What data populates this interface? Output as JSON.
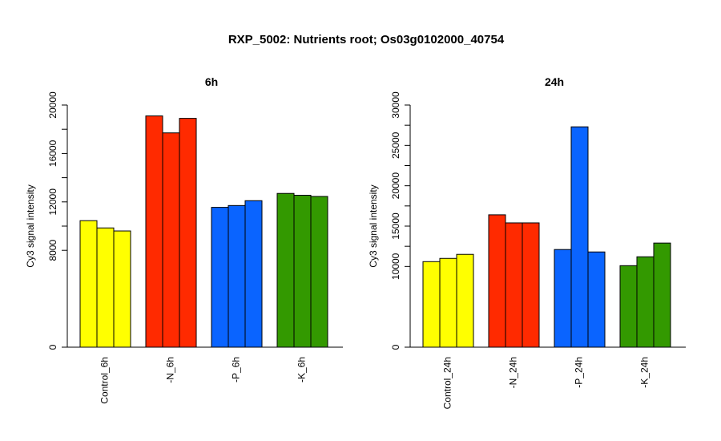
{
  "title": "RXP_5002: Nutrients root; Os03g0102000_40754",
  "chart_data": [
    {
      "type": "bar",
      "title": "6h",
      "ylabel": "Cy3 signal intensity",
      "ylim": [
        0,
        20000
      ],
      "yticks": [
        0,
        8000,
        12000,
        16000,
        20000
      ],
      "ytick_labels": [
        "0",
        "8000",
        "12000",
        "16000",
        "20000"
      ],
      "groups": [
        {
          "label": "Control_6h",
          "color": "#ffff00",
          "values": [
            10450,
            9850,
            9600
          ]
        },
        {
          "label": "-N_6h",
          "color": "#ff2a00",
          "values": [
            19100,
            17700,
            18900
          ]
        },
        {
          "label": "-P_6h",
          "color": "#0a64ff",
          "values": [
            11550,
            11700,
            12100
          ]
        },
        {
          "label": "-K_6h",
          "color": "#339900",
          "values": [
            12700,
            12550,
            12450
          ]
        }
      ]
    },
    {
      "type": "bar",
      "title": "24h",
      "ylabel": "Cy3 signal intensity",
      "ylim": [
        0,
        30000
      ],
      "yticks": [
        0,
        10000,
        15000,
        20000,
        25000,
        30000
      ],
      "ytick_labels": [
        "0",
        "10000",
        "15000",
        "20000",
        "25000",
        "30000"
      ],
      "groups": [
        {
          "label": "Control_24h",
          "color": "#ffff00",
          "values": [
            10600,
            11000,
            11500
          ]
        },
        {
          "label": "-N_24h",
          "color": "#ff2a00",
          "values": [
            16400,
            15400,
            15400
          ]
        },
        {
          "label": "-P_24h",
          "color": "#0a64ff",
          "values": [
            12100,
            27300,
            11800
          ]
        },
        {
          "label": "-K_24h",
          "color": "#339900",
          "values": [
            10100,
            11200,
            12900
          ]
        }
      ]
    }
  ]
}
